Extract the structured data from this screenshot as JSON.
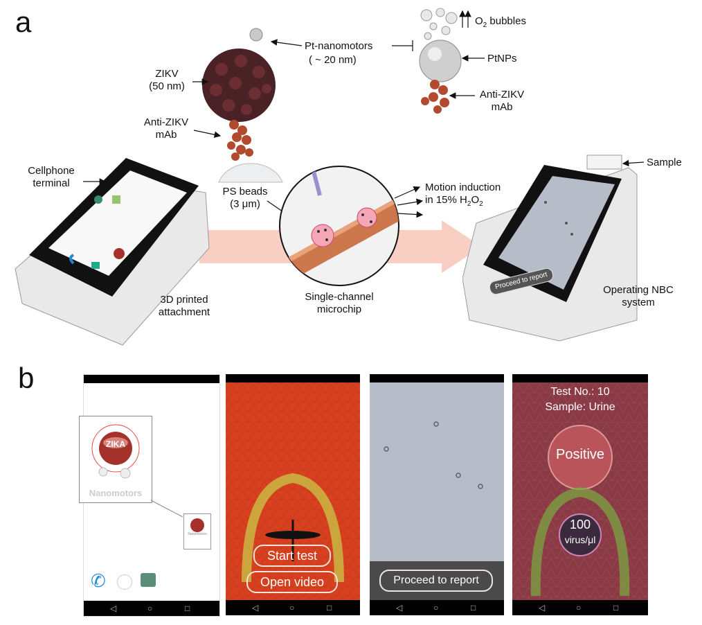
{
  "panel_a": {
    "letter": "a",
    "pt_nanomotors_line1": "Pt-nanomotors",
    "pt_nanomotors_line2": "( ~ 20 nm)",
    "o2_pre": "O",
    "o2_sub": "2",
    "o2_post": " bubbles",
    "ptnps": "PtNPs",
    "anti_zikv_right_line1": "Anti-ZIKV",
    "anti_zikv_right_line2": "mAb",
    "zikv_line1": "ZIKV",
    "zikv_line2": "(50 nm)",
    "anti_zikv_left_line1": "Anti-ZIKV",
    "anti_zikv_left_line2": "mAb",
    "cellphone_line1": "Cellphone",
    "cellphone_line2": "terminal",
    "ps_beads_line1": "PS beads",
    "ps_beads_line2": "(3 μm)",
    "motion_line1": "Motion induction",
    "motion_line2_pre": "in 15% H",
    "motion_sub1": "2",
    "motion_mid": "O",
    "motion_sub2": "2",
    "sample": "Sample",
    "printed_line1": "3D printed",
    "printed_line2": "attachment",
    "microchip_line1": "Single-channel",
    "microchip_line2": "microchip",
    "operating_line1": "Operating NBC",
    "operating_line2": "system",
    "phone_button": "Proceed to report"
  },
  "panel_b": {
    "letter": "b",
    "screen1": {
      "app_name": "Nanomotors",
      "logo_text": "ZIKA",
      "icon_caption": "Nanomotors"
    },
    "screen2": {
      "start_button": "Start test",
      "video_button": "Open video"
    },
    "screen3": {
      "report_button": "Proceed to report"
    },
    "screen4": {
      "test_no": "Test No.: 10",
      "sample": "Sample: Urine",
      "result": "Positive",
      "count": "100",
      "unit": "virus/μl"
    }
  },
  "colors": {
    "arrow": "#f9cfc3",
    "virus": "#4a2226",
    "antibody": "#b24a2e",
    "channel": "#c86a3a",
    "red_screen": "#d7411f",
    "gray_screen": "#b7bcc9",
    "result_screen": "#8a3a45"
  }
}
